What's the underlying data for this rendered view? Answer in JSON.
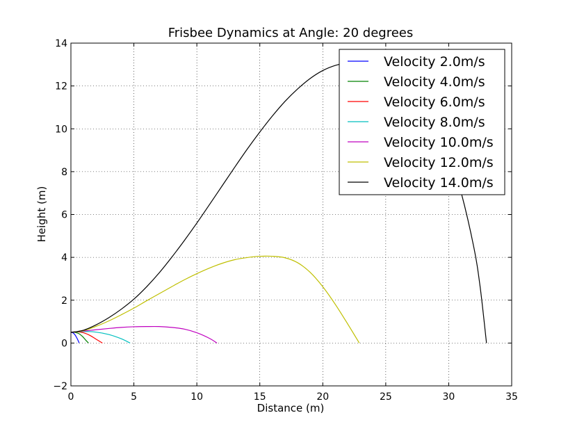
{
  "chart_data": {
    "type": "line",
    "title": "Frisbee Dynamics at Angle: 20 degrees",
    "xlabel": "Distance (m)",
    "ylabel": "Height (m)",
    "xlim": [
      0,
      35
    ],
    "ylim": [
      -2,
      14
    ],
    "x_ticks": [
      0,
      5,
      10,
      15,
      20,
      25,
      30,
      35
    ],
    "y_ticks": [
      -2,
      0,
      2,
      4,
      6,
      8,
      10,
      12,
      14
    ],
    "x_tick_labels": [
      "0",
      "5",
      "10",
      "15",
      "20",
      "25",
      "30",
      "35"
    ],
    "y_tick_labels": [
      "−2",
      "0",
      "2",
      "4",
      "6",
      "8",
      "10",
      "12",
      "14"
    ],
    "grid": true,
    "legend_position": "top-right",
    "series": [
      {
        "name": "Velocity 2.0m/s",
        "color": "#0000ff",
        "points": [
          [
            0,
            0.5
          ],
          [
            0.15,
            0.48
          ],
          [
            0.3,
            0.4
          ],
          [
            0.45,
            0.26
          ],
          [
            0.6,
            0.08
          ],
          [
            0.65,
            0
          ]
        ]
      },
      {
        "name": "Velocity 4.0m/s",
        "color": "#008000",
        "points": [
          [
            0,
            0.5
          ],
          [
            0.3,
            0.5
          ],
          [
            0.6,
            0.45
          ],
          [
            0.9,
            0.32
          ],
          [
            1.2,
            0.12
          ],
          [
            1.4,
            0
          ]
        ]
      },
      {
        "name": "Velocity 6.0m/s",
        "color": "#ff0000",
        "points": [
          [
            0,
            0.5
          ],
          [
            0.5,
            0.52
          ],
          [
            1.0,
            0.48
          ],
          [
            1.5,
            0.36
          ],
          [
            2.0,
            0.18
          ],
          [
            2.5,
            0
          ]
        ]
      },
      {
        "name": "Velocity 8.0m/s",
        "color": "#00bfbf",
        "points": [
          [
            0,
            0.5
          ],
          [
            1,
            0.54
          ],
          [
            2,
            0.51
          ],
          [
            3,
            0.4
          ],
          [
            4,
            0.2
          ],
          [
            4.7,
            0
          ]
        ]
      },
      {
        "name": "Velocity 10.0m/s",
        "color": "#bf00bf",
        "points": [
          [
            0,
            0.5
          ],
          [
            1,
            0.56
          ],
          [
            2,
            0.62
          ],
          [
            3,
            0.68
          ],
          [
            4,
            0.73
          ],
          [
            5,
            0.76
          ],
          [
            6,
            0.77
          ],
          [
            7,
            0.77
          ],
          [
            8,
            0.73
          ],
          [
            9,
            0.65
          ],
          [
            10,
            0.48
          ],
          [
            11,
            0.22
          ],
          [
            11.6,
            0
          ]
        ]
      },
      {
        "name": "Velocity 12.0m/s",
        "color": "#bfbf00",
        "points": [
          [
            0,
            0.5
          ],
          [
            1,
            0.58
          ],
          [
            2,
            0.78
          ],
          [
            3,
            1.03
          ],
          [
            4,
            1.32
          ],
          [
            5,
            1.63
          ],
          [
            6,
            1.97
          ],
          [
            7,
            2.3
          ],
          [
            8,
            2.63
          ],
          [
            9,
            2.95
          ],
          [
            10,
            3.24
          ],
          [
            11,
            3.5
          ],
          [
            12,
            3.72
          ],
          [
            13,
            3.89
          ],
          [
            14,
            3.99
          ],
          [
            15,
            4.05
          ],
          [
            16,
            4.05
          ],
          [
            17,
            3.98
          ],
          [
            18,
            3.75
          ],
          [
            19,
            3.3
          ],
          [
            20,
            2.63
          ],
          [
            21,
            1.8
          ],
          [
            22,
            0.87
          ],
          [
            22.9,
            0
          ]
        ]
      },
      {
        "name": "Velocity 14.0m/s",
        "color": "#000000",
        "points": [
          [
            0,
            0.5
          ],
          [
            1,
            0.6
          ],
          [
            2,
            0.85
          ],
          [
            3,
            1.18
          ],
          [
            4,
            1.58
          ],
          [
            5,
            2.05
          ],
          [
            6,
            2.62
          ],
          [
            7,
            3.27
          ],
          [
            8,
            4.0
          ],
          [
            9,
            4.78
          ],
          [
            10,
            5.6
          ],
          [
            11,
            6.46
          ],
          [
            12,
            7.33
          ],
          [
            13,
            8.2
          ],
          [
            14,
            9.05
          ],
          [
            15,
            9.85
          ],
          [
            16,
            10.6
          ],
          [
            17,
            11.28
          ],
          [
            18,
            11.86
          ],
          [
            19,
            12.35
          ],
          [
            20,
            12.72
          ],
          [
            21,
            12.96
          ],
          [
            22,
            13.08
          ],
          [
            23,
            13.09
          ],
          [
            24,
            13.0
          ],
          [
            25,
            12.82
          ],
          [
            26,
            12.52
          ],
          [
            27,
            12.05
          ],
          [
            28,
            11.35
          ],
          [
            29,
            10.3
          ],
          [
            30,
            8.9
          ],
          [
            31,
            7.0
          ],
          [
            32,
            4.45
          ],
          [
            32.5,
            2.6
          ],
          [
            33,
            0
          ]
        ]
      }
    ]
  }
}
